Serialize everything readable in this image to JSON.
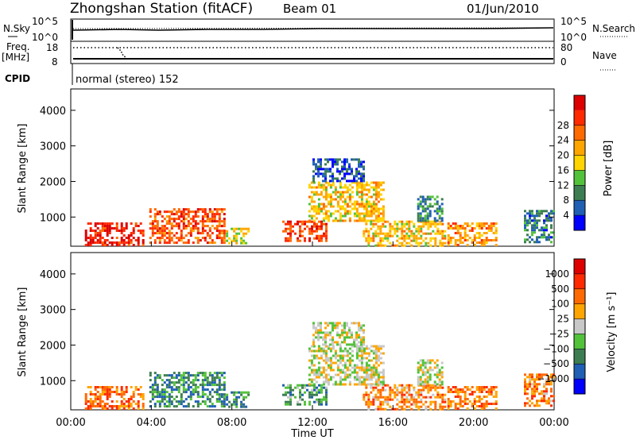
{
  "header": {
    "station": "Zhongshan Station (fitACF)",
    "beam": "Beam 01",
    "date": "01/Jun/2010"
  },
  "status_panels": {
    "nsky_label": "N.Sky",
    "nsky_ticks": [
      "10^5",
      "10^0"
    ],
    "nsearch_label": "N.Search",
    "nsearch_ticks": [
      "10^5",
      "10^0"
    ],
    "freq_label": "Freq.",
    "freq_unit": "[MHz]",
    "freq_ticks": [
      "18",
      "8"
    ],
    "nave_label": "Nave",
    "nave_ticks": [
      "80",
      "0"
    ],
    "cpid_label": "CPID",
    "cpid_text": "normal (stereo) 152"
  },
  "chart_data": [
    {
      "type": "heatmap",
      "name": "power",
      "ylabel": "Slant Range [km]",
      "yticks": [
        1000,
        2000,
        3000,
        4000
      ],
      "ylim": [
        180,
        4600
      ],
      "xlim": [
        0,
        24
      ],
      "colorbar": {
        "label": "Power [dB]",
        "ticks": [
          "4",
          "8",
          "12",
          "16",
          "20",
          "24",
          "28"
        ],
        "colors": [
          "#0000ff",
          "#1f5fb4",
          "#3d7d52",
          "#52c23a",
          "#ffd400",
          "#ffa500",
          "#ff6a00",
          "#ff2a00",
          "#dd0000"
        ]
      },
      "echo_regions": [
        {
          "t0": 0.7,
          "t1": 3.6,
          "r0": 200,
          "r1": 850,
          "level": 7.5
        },
        {
          "t0": 3.9,
          "t1": 7.6,
          "r0": 250,
          "r1": 1250,
          "level": 6.5
        },
        {
          "t0": 7.7,
          "t1": 8.8,
          "r0": 250,
          "r1": 700,
          "level": 4
        },
        {
          "t0": 10.5,
          "t1": 12.7,
          "r0": 350,
          "r1": 900,
          "level": 6.8
        },
        {
          "t0": 11.8,
          "t1": 15.5,
          "r0": 900,
          "r1": 2000,
          "level": 4.5
        },
        {
          "t0": 12.0,
          "t1": 14.5,
          "r0": 2000,
          "r1": 2650,
          "level": 1
        },
        {
          "t0": 14.5,
          "t1": 18.6,
          "r0": 200,
          "r1": 900,
          "level": 4.5
        },
        {
          "t0": 17.2,
          "t1": 18.5,
          "r0": 900,
          "r1": 1600,
          "level": 2
        },
        {
          "t0": 18.7,
          "t1": 21.1,
          "r0": 200,
          "r1": 850,
          "level": 5.5
        },
        {
          "t0": 22.5,
          "t1": 24.0,
          "r0": 300,
          "r1": 1200,
          "level": 1.5
        }
      ]
    },
    {
      "type": "heatmap",
      "name": "velocity",
      "ylabel": "Slant Range [km]",
      "yticks": [
        1000,
        2000,
        3000,
        4000
      ],
      "ylim": [
        180,
        4600
      ],
      "xlim": [
        0,
        24
      ],
      "xticks": [
        "00:00",
        "04:00",
        "08:00",
        "12:00",
        "16:00",
        "20:00",
        "00:00"
      ],
      "xlabel": "Time UT",
      "colorbar": {
        "label": "Velocity [m s⁻¹]",
        "ticks": [
          "1000",
          "500",
          "100",
          "25",
          "−25",
          "−100",
          "−500",
          "−1000"
        ],
        "colors": [
          "#0000ff",
          "#1f5fb4",
          "#3d7d52",
          "#52c23a",
          "#c8c8c8",
          "#ffa500",
          "#ff6a00",
          "#ff2a00",
          "#dd0000"
        ]
      },
      "echo_regions": [
        {
          "t0": 0.7,
          "t1": 3.6,
          "r0": 200,
          "r1": 850,
          "level": 6
        },
        {
          "t0": 3.9,
          "t1": 7.6,
          "r0": 250,
          "r1": 1250,
          "level": 2
        },
        {
          "t0": 7.7,
          "t1": 8.8,
          "r0": 250,
          "r1": 700,
          "level": 2
        },
        {
          "t0": 10.5,
          "t1": 12.7,
          "r0": 350,
          "r1": 900,
          "level": 2.5
        },
        {
          "t0": 11.8,
          "t1": 15.5,
          "r0": 900,
          "r1": 2000,
          "level": 4
        },
        {
          "t0": 12.0,
          "t1": 14.5,
          "r0": 2000,
          "r1": 2650,
          "level": 4
        },
        {
          "t0": 14.5,
          "t1": 18.6,
          "r0": 200,
          "r1": 900,
          "level": 5.5
        },
        {
          "t0": 17.2,
          "t1": 18.5,
          "r0": 900,
          "r1": 1600,
          "level": 4
        },
        {
          "t0": 18.7,
          "t1": 21.1,
          "r0": 200,
          "r1": 850,
          "level": 6
        },
        {
          "t0": 22.5,
          "t1": 24.0,
          "r0": 300,
          "r1": 1200,
          "level": 5.5
        }
      ]
    }
  ]
}
